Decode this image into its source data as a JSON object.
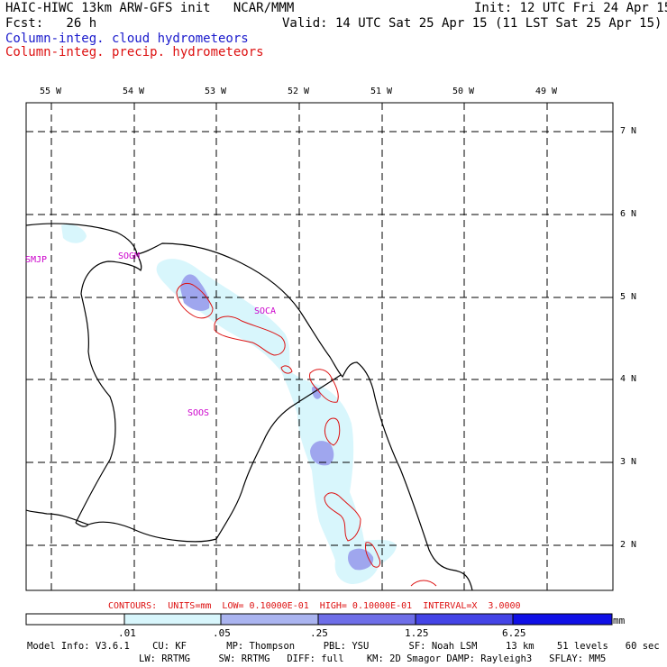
{
  "header": {
    "title_left": "HAIC-HIWC 13km ARW-GFS init   NCAR/MMM",
    "init": "Init: 12 UTC Fri 24 Apr 15",
    "fcst": "Fcst:   26 h",
    "valid": "Valid: 14 UTC Sat 25 Apr 15 (11 LST Sat 25 Apr 15)",
    "field_cloud": "Column-integ. cloud hydrometeors",
    "field_precip": "Column-integ. precip. hydrometeors"
  },
  "map": {
    "lon_labels": [
      "55 W",
      "54 W",
      "53 W",
      "52 W",
      "51 W",
      "50 W",
      "49 W"
    ],
    "lat_labels": [
      "7 N",
      "6 N",
      "5 N",
      "4 N",
      "3 N",
      "2 N"
    ],
    "stations": [
      "SMJP",
      "SOGM",
      "SOCA",
      "SOOS"
    ]
  },
  "colorbar": {
    "ticks": [
      ".01",
      ".05",
      ".25",
      "1.25",
      "6.25"
    ],
    "unit": "mm",
    "colors": [
      "#ffffff",
      "#d8f6fc",
      "#aab4f0",
      "#6e6ee8",
      "#4444e6",
      "#1010e6"
    ]
  },
  "contours_text": "CONTOURS:  UNITS=mm  LOW= 0.10000E-01  HIGH= 0.10000E-01  INTERVAL=X  3.0000",
  "model_info": {
    "line1": "Model Info: V3.6.1    CU: KF       MP: Thompson     PBL: YSU       SF: Noah LSM     13 km    51 levels   60 sec",
    "line2": "LW: RRTMG     SW: RRTMG   DIFF: full    KM: 2D Smagor DAMP: Rayleigh3   SFLAY: MM5"
  }
}
